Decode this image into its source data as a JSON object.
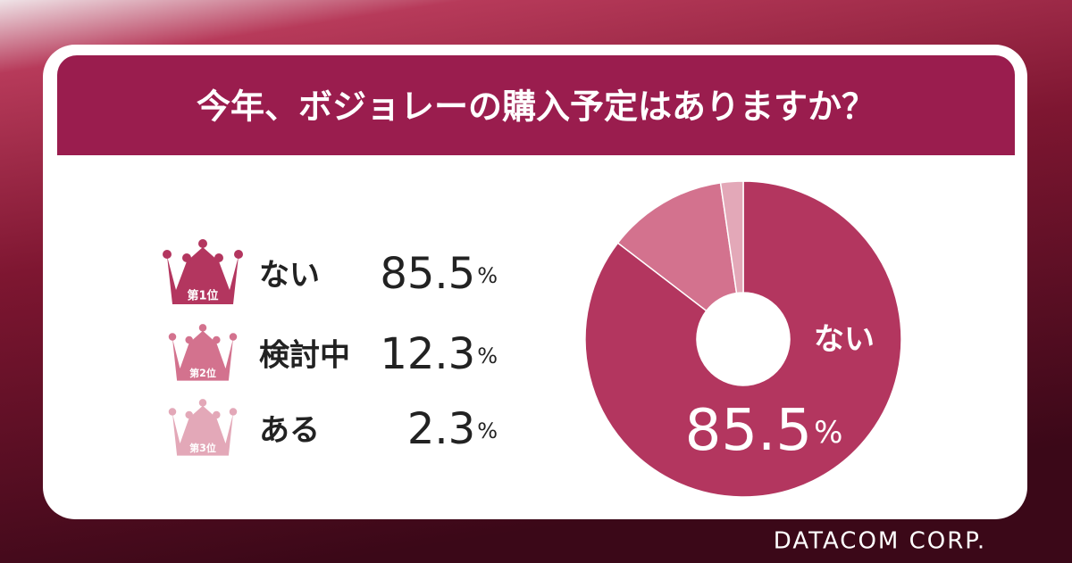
{
  "chart_data": {
    "type": "donut",
    "title": "今年、ボジョレーの購入予定はありますか？",
    "categories": [
      "ない",
      "検討中",
      "ある"
    ],
    "values": [
      85.5,
      12.3,
      2.3
    ],
    "unit": "%",
    "colors": [
      "#b3365f",
      "#d3728e",
      "#e3a8b8"
    ],
    "ranks": [
      "第1位",
      "第2位",
      "第3位"
    ],
    "brand": "DATACOM CORP."
  }
}
